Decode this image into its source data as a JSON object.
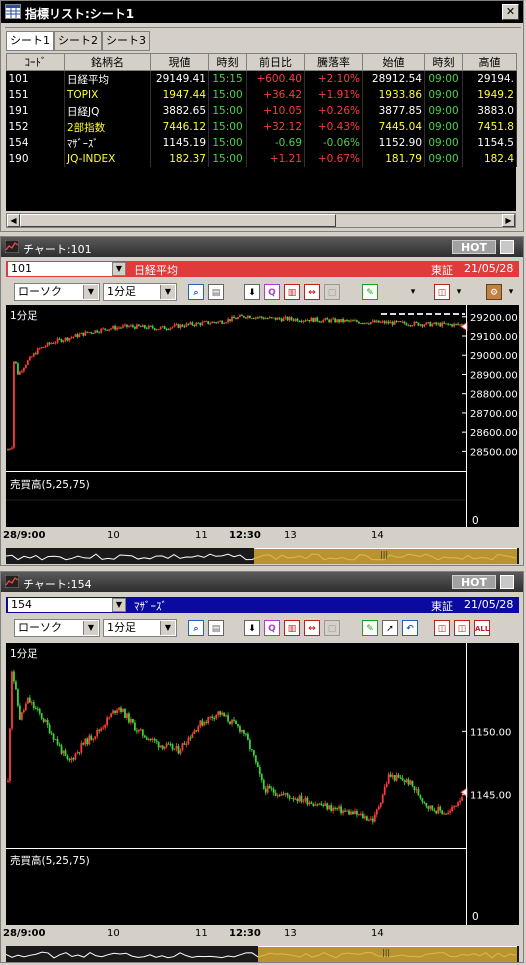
{
  "list_window": {
    "title": "指標リスト:シート1",
    "tabs": [
      "シート1",
      "シート2",
      "シート3"
    ],
    "columns": [
      "ｺｰﾄﾞ",
      "銘柄名",
      "現値",
      "時刻",
      "前日比",
      "騰落率",
      "始値",
      "時刻",
      "高値"
    ],
    "rows": [
      {
        "code": "101",
        "name": "日経平均",
        "price": "29149.41",
        "time": "15:15",
        "change": "+600.40",
        "pct": "+2.10%",
        "open": "28912.54",
        "otime": "09:00",
        "high": "29194."
      },
      {
        "code": "151",
        "name": "TOPIX",
        "price": "1947.44",
        "time": "15:00",
        "change": "+36.42",
        "pct": "+1.91%",
        "open": "1933.86",
        "otime": "09:00",
        "high": "1949.2"
      },
      {
        "code": "191",
        "name": "日経JQ",
        "price": "3882.65",
        "time": "15:00",
        "change": "+10.05",
        "pct": "+0.26%",
        "open": "3877.85",
        "otime": "09:00",
        "high": "3883.0"
      },
      {
        "code": "152",
        "name": "2部指数",
        "price": "7446.12",
        "time": "15:00",
        "change": "+32.12",
        "pct": "+0.43%",
        "open": "7445.04",
        "otime": "09:00",
        "high": "7451.8"
      },
      {
        "code": "154",
        "name": "ﾏｻﾞｰｽﾞ",
        "price": "1145.19",
        "time": "15:00",
        "change": "-0.69",
        "pct": "-0.06%",
        "open": "1152.90",
        "otime": "09:00",
        "high": "1154.5"
      },
      {
        "code": "190",
        "name": "JQ-INDEX",
        "price": "182.37",
        "time": "15:00",
        "change": "+1.21",
        "pct": "+0.67%",
        "open": "181.79",
        "otime": "09:00",
        "high": "182.4"
      }
    ]
  },
  "chart1": {
    "title": "チャート:101",
    "hot": "HOT",
    "code": "101",
    "name": "日経平均",
    "exchange": "東証",
    "date": "21/05/28",
    "chart_type": "ローソク",
    "period": "1分足",
    "period_label": "1分足",
    "volume_label": "売買高(5,25,75)",
    "volume_zero": "0",
    "time_labels": [
      "28/9:00",
      "10",
      "11",
      "12:30",
      "13",
      "14"
    ],
    "bar_color": "#e03a3a",
    "chart_data": {
      "type": "candlestick",
      "ylim": [
        28450,
        29230
      ],
      "yticks": [
        "29200.00",
        "29100.00",
        "29000.00",
        "28900.00",
        "28800.00",
        "28700.00",
        "28600.00",
        "28500.00"
      ],
      "ytick_values": [
        29200,
        29100,
        29000,
        28900,
        28800,
        28700,
        28600,
        28500
      ],
      "last_value": 29149.41,
      "path": [
        [
          0,
          28510
        ],
        [
          4,
          28530
        ],
        [
          6,
          29000
        ],
        [
          10,
          28900
        ],
        [
          18,
          28960
        ],
        [
          30,
          29030
        ],
        [
          45,
          29070
        ],
        [
          60,
          29090
        ],
        [
          80,
          29120
        ],
        [
          100,
          29140
        ],
        [
          120,
          29150
        ],
        [
          150,
          29140
        ],
        [
          180,
          29160
        ],
        [
          200,
          29170
        ],
        [
          210,
          29175
        ],
        [
          235,
          29205
        ],
        [
          260,
          29190
        ],
        [
          300,
          29185
        ],
        [
          340,
          29175
        ],
        [
          380,
          29168
        ],
        [
          420,
          29160
        ],
        [
          450,
          29158
        ]
      ],
      "n": 230,
      "seed": 7,
      "noise": 12
    }
  },
  "chart2": {
    "title": "チャート:154",
    "hot": "HOT",
    "code": "154",
    "name": "ﾏｻﾞｰｽﾞ",
    "exchange": "東証",
    "date": "21/05/28",
    "chart_type": "ローソク",
    "period": "1分足",
    "period_label": "1分足",
    "volume_label": "売買高(5,25,75)",
    "volume_zero": "0",
    "time_labels": [
      "28/9:00",
      "10",
      "11",
      "12:30",
      "13",
      "14"
    ],
    "bar_color": "#0a0aa0",
    "chart_data": {
      "type": "candlestick",
      "ylim": [
        1141.5,
        1156.5
      ],
      "yticks": [
        "1150.00",
        "1145.00"
      ],
      "ytick_values": [
        1150,
        1145
      ],
      "last_value": 1145.19,
      "path": [
        [
          0,
          1146
        ],
        [
          4,
          1155
        ],
        [
          12,
          1151
        ],
        [
          20,
          1152.5
        ],
        [
          35,
          1151
        ],
        [
          50,
          1149
        ],
        [
          60,
          1147.5
        ],
        [
          75,
          1149
        ],
        [
          90,
          1150
        ],
        [
          110,
          1152
        ],
        [
          130,
          1150
        ],
        [
          150,
          1149
        ],
        [
          170,
          1148.5
        ],
        [
          190,
          1150.5
        ],
        [
          210,
          1151.5
        ],
        [
          235,
          1150
        ],
        [
          245,
          1148
        ],
        [
          255,
          1145.5
        ],
        [
          275,
          1145
        ],
        [
          300,
          1144.5
        ],
        [
          320,
          1144
        ],
        [
          345,
          1143.5
        ],
        [
          365,
          1143
        ],
        [
          380,
          1146.5
        ],
        [
          400,
          1146
        ],
        [
          420,
          1144
        ],
        [
          440,
          1143.5
        ],
        [
          455,
          1145.2
        ]
      ],
      "n": 230,
      "seed": 11,
      "noise": 0.3
    }
  }
}
